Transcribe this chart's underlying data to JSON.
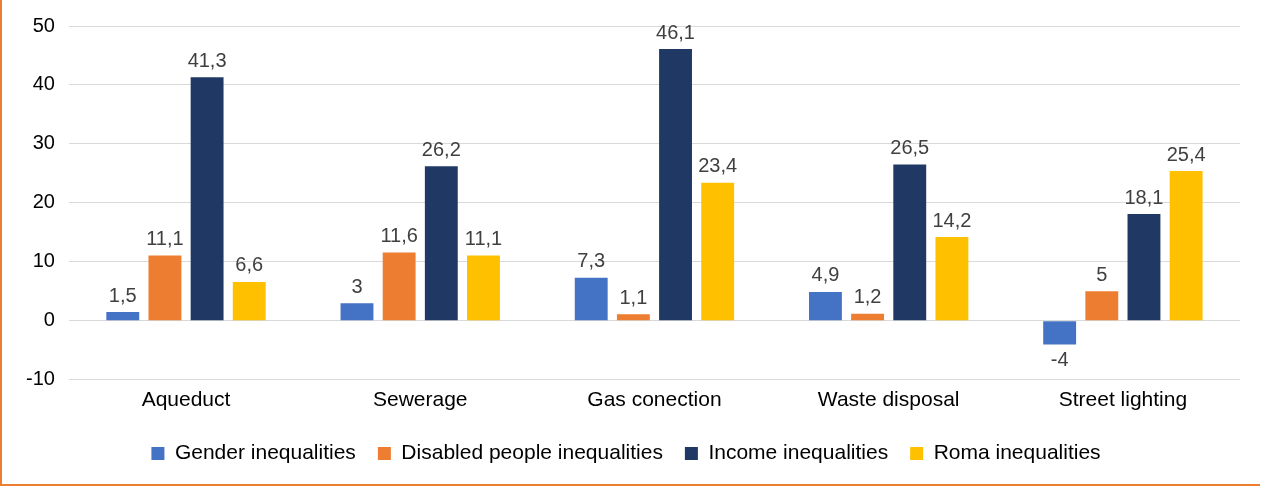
{
  "chart_data": {
    "type": "bar",
    "categories": [
      "Aqueduct",
      "Sewerage",
      "Gas conection",
      "Waste disposal",
      "Street lighting"
    ],
    "series": [
      {
        "name": "Gender inequalities",
        "color": "#4472c4",
        "values": [
          1.5,
          3,
          7.3,
          4.9,
          -4
        ],
        "value_labels": [
          "1,5",
          "3",
          "7,3",
          "4,9",
          "-4"
        ]
      },
      {
        "name": "Disabled people inequalities",
        "color": "#ed7d31",
        "values": [
          11.1,
          11.6,
          1.1,
          1.2,
          5
        ],
        "value_labels": [
          "11,1",
          "11,6",
          "1,1",
          "1,2",
          "5"
        ]
      },
      {
        "name": "Income inequalities",
        "color": "#203864",
        "values": [
          41.3,
          26.2,
          46.1,
          26.5,
          18.1
        ],
        "value_labels": [
          "41,3",
          "26,2",
          "46,1",
          "26,5",
          "18,1"
        ]
      },
      {
        "name": "Roma inequalities",
        "color": "#ffc000",
        "values": [
          6.6,
          11.1,
          23.4,
          14.2,
          25.4
        ],
        "value_labels": [
          "6,6",
          "11,1",
          "23,4",
          "14,2",
          "25,4"
        ]
      }
    ],
    "ylim": [
      -10,
      50
    ],
    "yticks": [
      -10,
      0,
      10,
      20,
      30,
      40,
      50
    ],
    "grid": "y",
    "legend": "bottom"
  }
}
